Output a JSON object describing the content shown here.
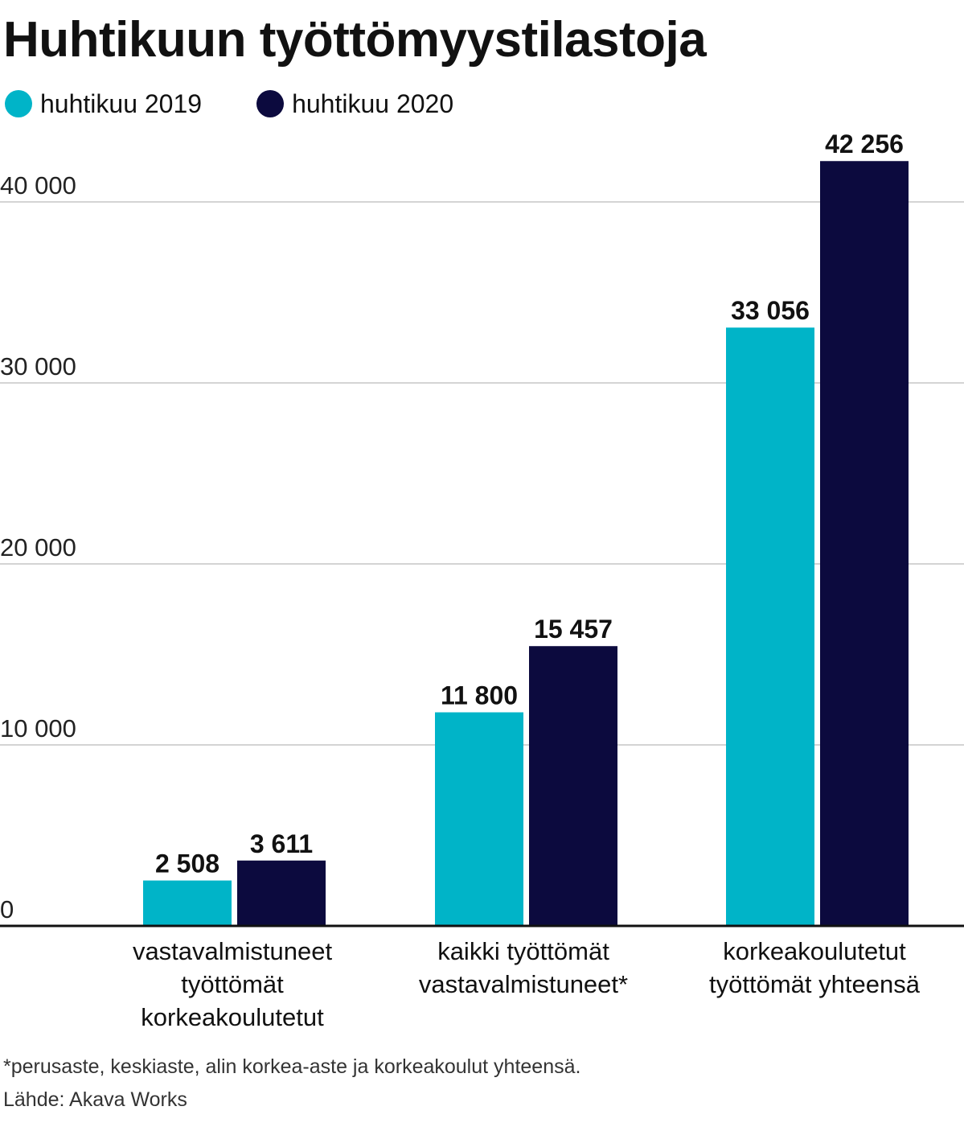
{
  "chart_data": {
    "type": "bar",
    "title": "Huhtikuun työttömyystilastoja",
    "categories": [
      [
        "vastavalmistuneet",
        "työttömät",
        "korkeakoulutetut"
      ],
      [
        "kaikki työttömät",
        "vastavalmistuneet*"
      ],
      [
        "korkeakoulutetut",
        "työttömät yhteensä"
      ]
    ],
    "series": [
      {
        "name": "huhtikuu 2019",
        "color": "#00b4c8",
        "values": [
          2508,
          11800,
          33056
        ],
        "labels": [
          "2 508",
          "11 800",
          "33 056"
        ]
      },
      {
        "name": "huhtikuu 2020",
        "color": "#0c0a3e",
        "values": [
          3611,
          15457,
          42256
        ],
        "labels": [
          "3 611",
          "15 457",
          "42 256"
        ]
      }
    ],
    "yticks": [
      0,
      10000,
      20000,
      30000,
      40000
    ],
    "ytick_labels": [
      "0",
      "10 000",
      "20 000",
      "30 000",
      "40 000"
    ],
    "ylim": [
      0,
      42256
    ],
    "grid": true,
    "legend": "top-left",
    "xlabel": "",
    "ylabel": ""
  },
  "footnote": "*perusaste, keskiaste, alin korkea-aste ja korkeakoulut yhteensä.",
  "source": "Lähde: Akava Works"
}
